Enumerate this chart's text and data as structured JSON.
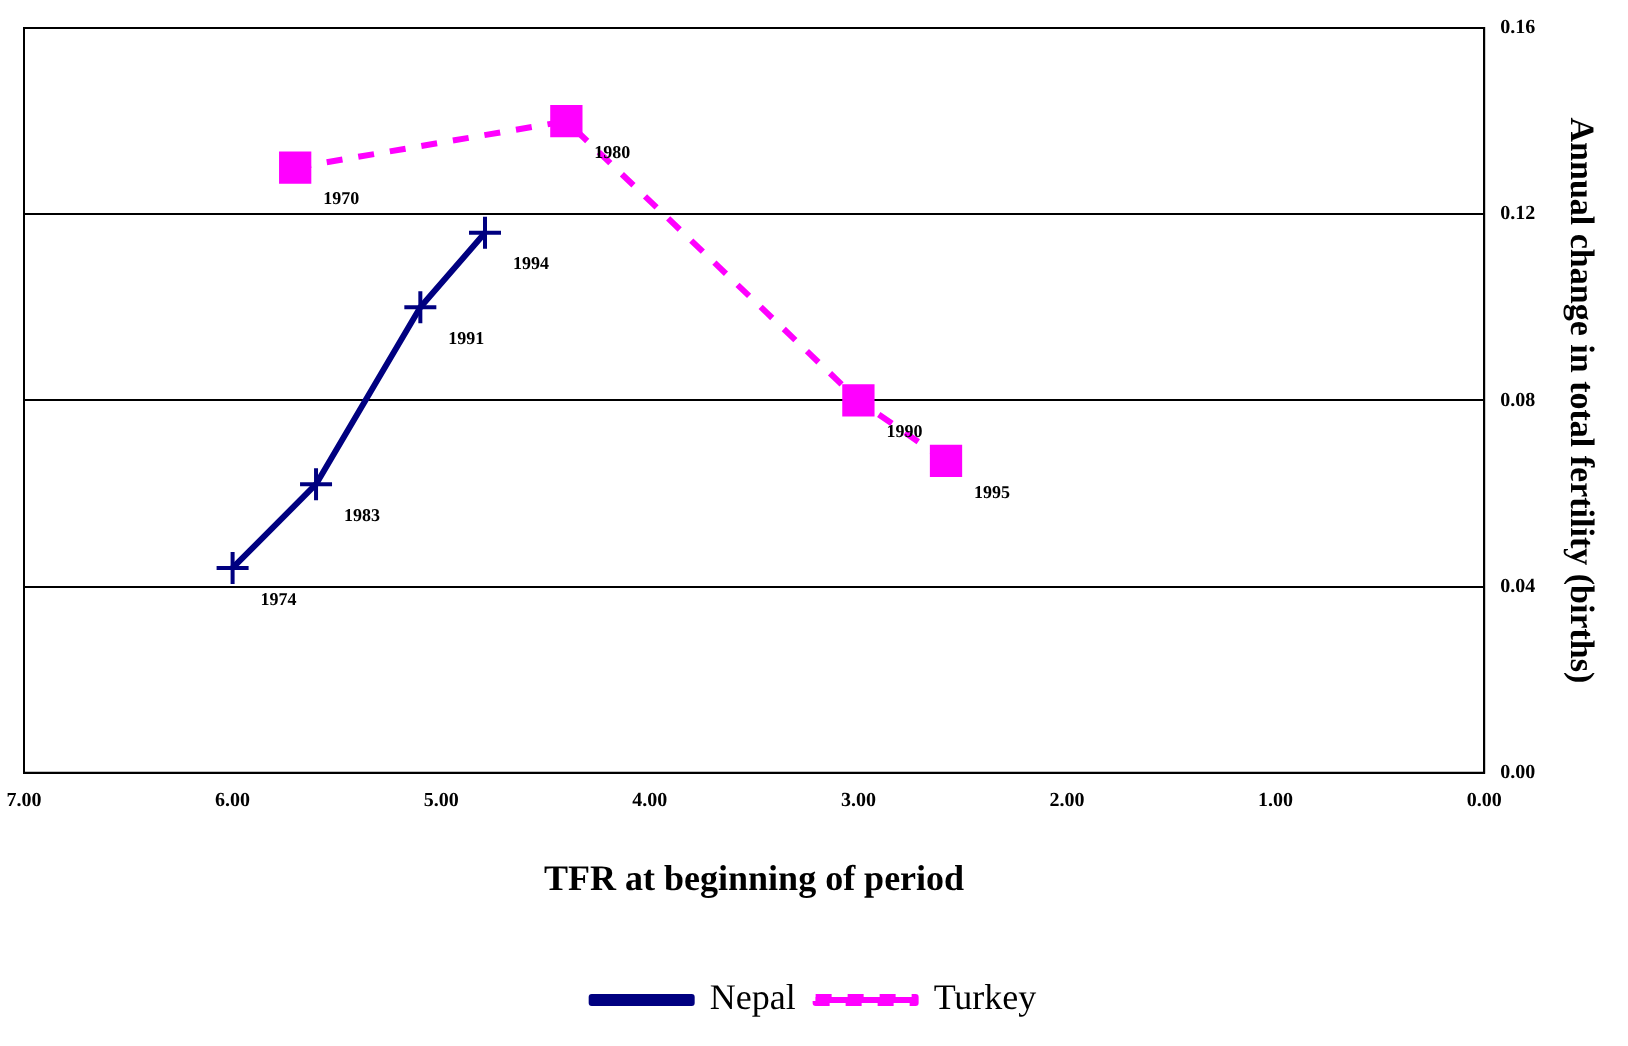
{
  "chart_data": {
    "type": "line",
    "xlabel": "TFR at beginning of period",
    "ylabel": "Annual change in total fertility (births)",
    "xlim": [
      7,
      0
    ],
    "xticks": [
      {
        "value": 7,
        "label": "7.00"
      },
      {
        "value": 6,
        "label": "6.00"
      },
      {
        "value": 5,
        "label": "5.00"
      },
      {
        "value": 4,
        "label": "4.00"
      },
      {
        "value": 3,
        "label": "3.00"
      },
      {
        "value": 2,
        "label": "2.00"
      },
      {
        "value": 1,
        "label": "1.00"
      },
      {
        "value": 0,
        "label": "0.00"
      }
    ],
    "ylim": [
      0,
      0.16
    ],
    "yticks": [
      {
        "value": 0,
        "label": "0.00"
      },
      {
        "value": 0.04,
        "label": "0.04"
      },
      {
        "value": 0.08,
        "label": "0.08"
      },
      {
        "value": 0.12,
        "label": "0.12"
      },
      {
        "value": 0.16,
        "label": "0.16"
      }
    ],
    "grid": "y",
    "legend": "bottom",
    "series": [
      {
        "name": "Nepal",
        "color": "#000080",
        "x": [
          6.0,
          5.6,
          5.1,
          4.79
        ],
        "values": [
          0.044,
          0.062,
          0.1,
          0.116
        ],
        "marker": "cross",
        "line_style": "solid"
      },
      {
        "name": "Turkey",
        "color": "#ff00ff",
        "x": [
          5.7,
          4.4,
          3.0,
          2.58
        ],
        "values": [
          0.13,
          0.14,
          0.08,
          0.067
        ],
        "marker": "square",
        "line_style": "dashed"
      }
    ],
    "annotations": [
      {
        "text": "1974",
        "x": 6.0,
        "y": 0.044
      },
      {
        "text": "1983",
        "x": 5.6,
        "y": 0.062
      },
      {
        "text": "1991",
        "x": 5.1,
        "y": 0.1
      },
      {
        "text": "1994",
        "x": 4.79,
        "y": 0.116
      },
      {
        "text": "1970",
        "x": 5.7,
        "y": 0.13
      },
      {
        "text": "1980",
        "x": 4.4,
        "y": 0.14
      },
      {
        "text": "1990",
        "x": 3.0,
        "y": 0.08
      },
      {
        "text": "1995",
        "x": 2.58,
        "y": 0.067
      }
    ]
  }
}
